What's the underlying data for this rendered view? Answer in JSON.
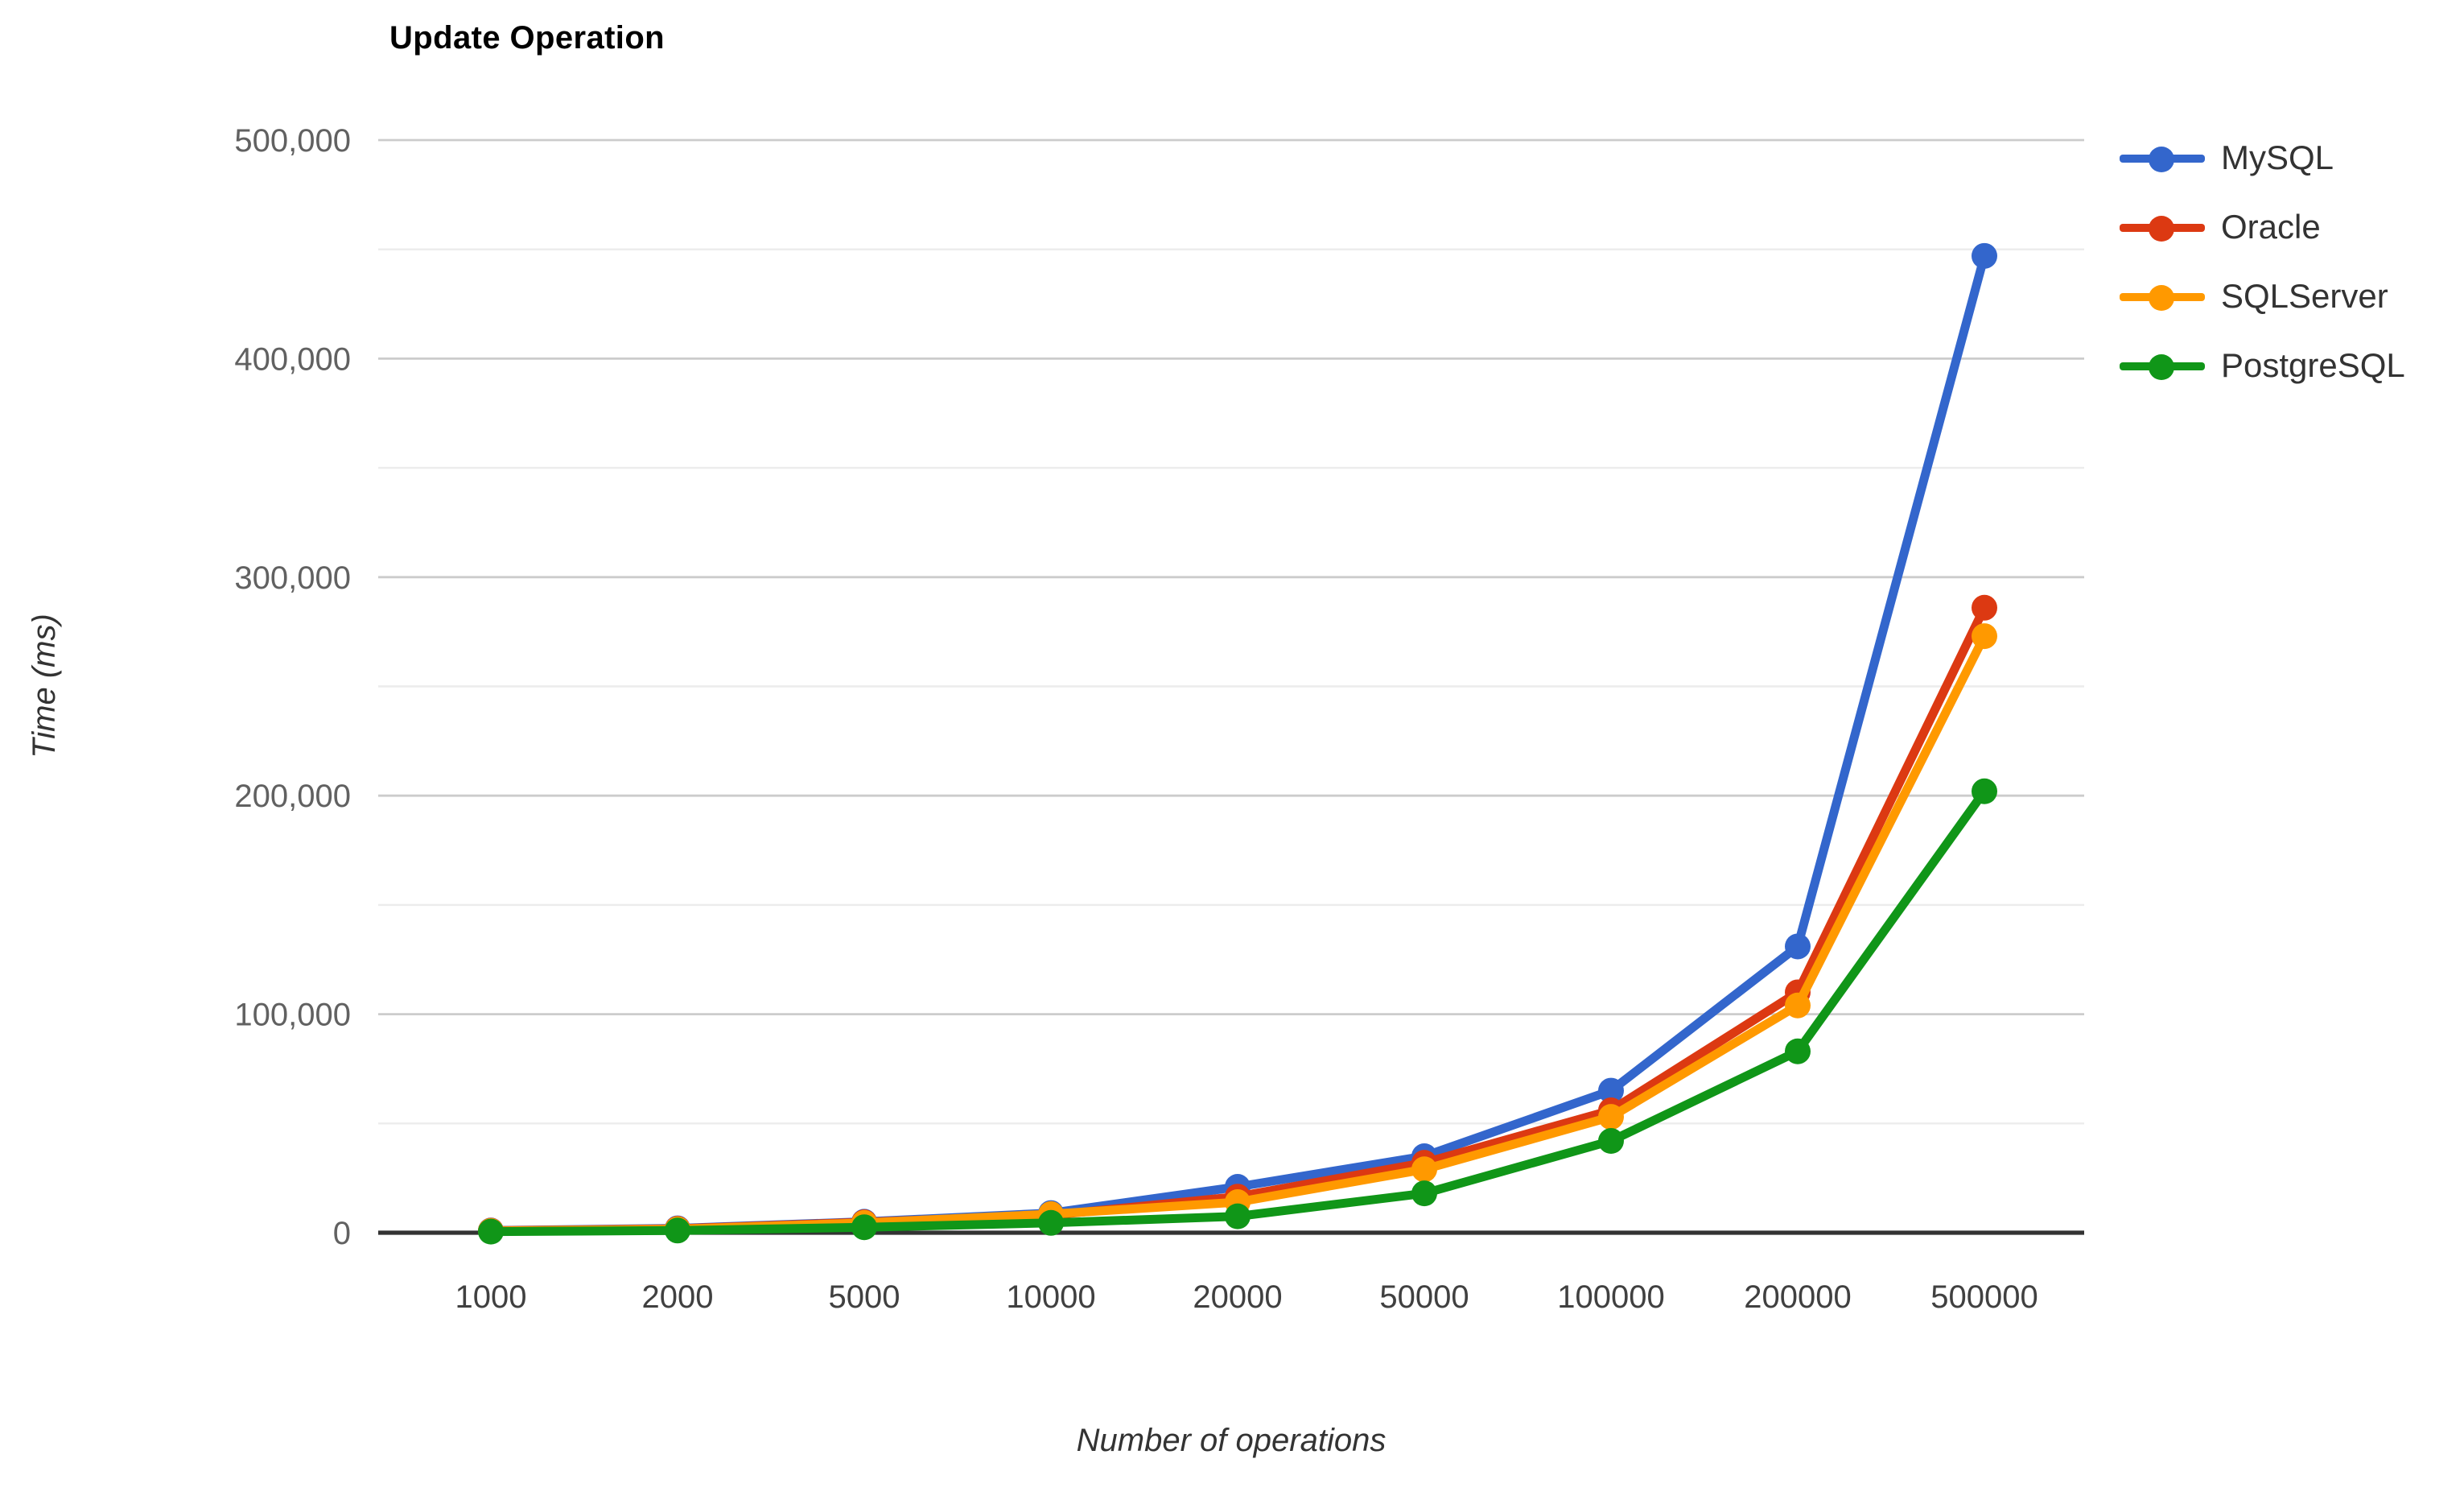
{
  "title": "Update Operation",
  "chart_data": {
    "type": "line",
    "title": "Update Operation",
    "xlabel": "Number of operations",
    "ylabel": "Time (ms)",
    "categories": [
      "1000",
      "2000",
      "5000",
      "10000",
      "20000",
      "50000",
      "100000",
      "200000",
      "500000"
    ],
    "series": [
      {
        "name": "MySQL",
        "color": "#3366CC",
        "values": [
          1000,
          2000,
          5000,
          9000,
          21000,
          35000,
          65000,
          131000,
          447000
        ]
      },
      {
        "name": "Oracle",
        "color": "#DC3912",
        "values": [
          900,
          1800,
          4800,
          8000,
          16500,
          32000,
          56000,
          110000,
          286000
        ]
      },
      {
        "name": "SQLServer",
        "color": "#FF9900",
        "values": [
          800,
          1600,
          4500,
          8500,
          14000,
          29000,
          53000,
          104000,
          273000
        ]
      },
      {
        "name": "PostgreSQL",
        "color": "#109618",
        "values": [
          500,
          1000,
          2500,
          4500,
          7500,
          18000,
          42000,
          83000,
          202000
        ]
      }
    ],
    "ylim": [
      0,
      500000
    ],
    "y_tick_values": [
      0,
      100000,
      200000,
      300000,
      400000,
      500000
    ],
    "y_tick_labels": [
      "0",
      "100,000",
      "200,000",
      "300,000",
      "400,000",
      "500,000"
    ],
    "grid": true,
    "minor_grid": true,
    "legend_position": "right"
  },
  "colors": {
    "background": "#ffffff",
    "major_gridline": "#cccccc",
    "minor_gridline": "#ececec",
    "axis_line": "#333333",
    "y_tick_text": "#616161",
    "x_tick_text": "#404040",
    "axis_title_text": "#333333",
    "title_text": "#000000"
  }
}
